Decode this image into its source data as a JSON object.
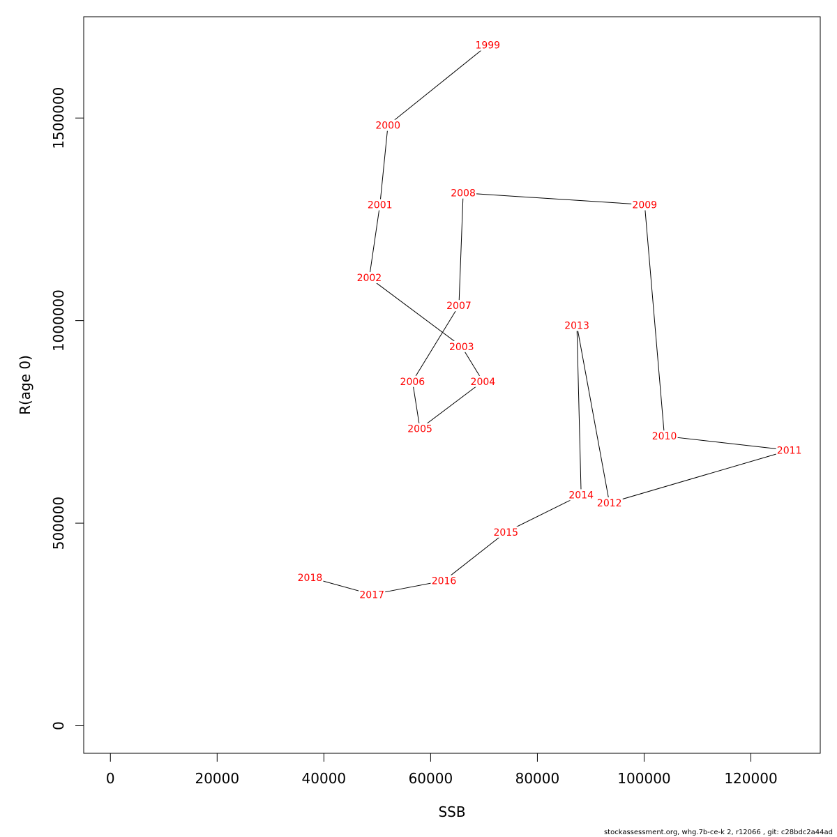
{
  "chart_data": {
    "type": "line",
    "xlabel": "SSB",
    "ylabel": "R(age 0)",
    "xlim": [
      -5000,
      133000
    ],
    "ylim": [
      -68000,
      1750000
    ],
    "xticks": [
      0,
      20000,
      40000,
      60000,
      80000,
      100000,
      120000
    ],
    "yticks": [
      0,
      500000,
      1000000,
      1500000
    ],
    "line_color": "#000000",
    "label_color": "#ff0000",
    "grid": false,
    "legend": "none",
    "points": [
      {
        "year": "1999",
        "x": 70700,
        "y": 1680000
      },
      {
        "year": "2000",
        "x": 52000,
        "y": 1482000
      },
      {
        "year": "2001",
        "x": 50500,
        "y": 1286000
      },
      {
        "year": "2002",
        "x": 48500,
        "y": 1106000
      },
      {
        "year": "2003",
        "x": 65800,
        "y": 936000
      },
      {
        "year": "2004",
        "x": 69800,
        "y": 850000
      },
      {
        "year": "2005",
        "x": 58000,
        "y": 733000
      },
      {
        "year": "2006",
        "x": 56600,
        "y": 850000
      },
      {
        "year": "2007",
        "x": 65300,
        "y": 1037000
      },
      {
        "year": "2008",
        "x": 66100,
        "y": 1315000
      },
      {
        "year": "2009",
        "x": 100100,
        "y": 1286000
      },
      {
        "year": "2010",
        "x": 103800,
        "y": 715000
      },
      {
        "year": "2011",
        "x": 127200,
        "y": 680000
      },
      {
        "year": "2012",
        "x": 93500,
        "y": 550000
      },
      {
        "year": "2013",
        "x": 87400,
        "y": 988000
      },
      {
        "year": "2014",
        "x": 88200,
        "y": 570000
      },
      {
        "year": "2015",
        "x": 74100,
        "y": 478000
      },
      {
        "year": "2016",
        "x": 62500,
        "y": 358000
      },
      {
        "year": "2017",
        "x": 49000,
        "y": 324000
      },
      {
        "year": "2018",
        "x": 37400,
        "y": 366000
      }
    ]
  },
  "footer": {
    "text": "stockassessment.org, whg.7b-ce-k  2, r12066 , git: c28bdc2a44ad"
  }
}
